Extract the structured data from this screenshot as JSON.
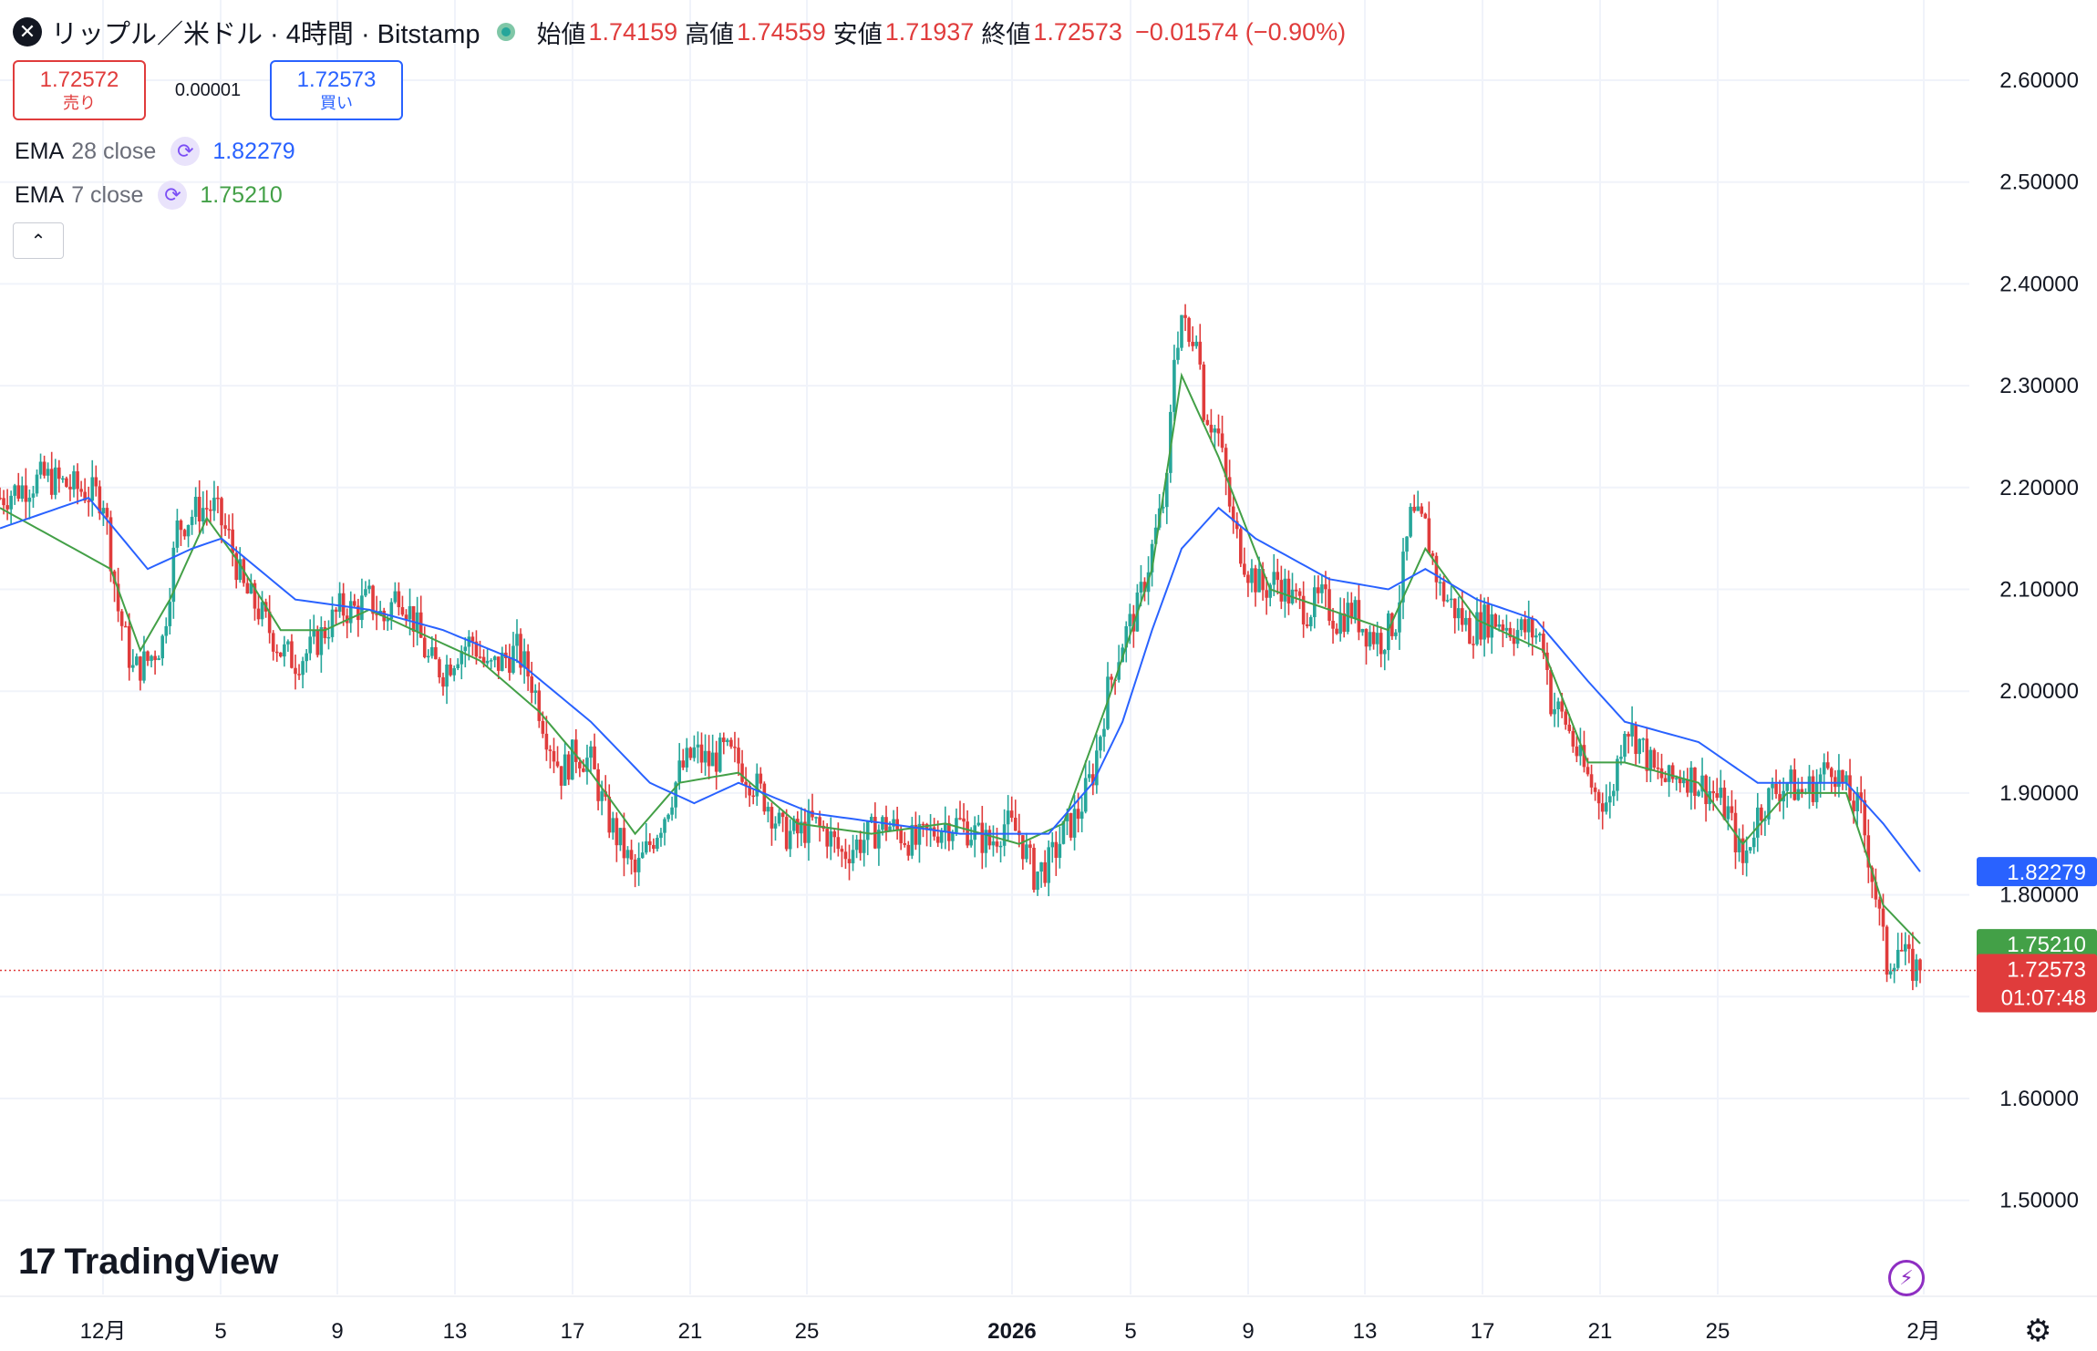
{
  "header": {
    "title": "リップル／米ドル · 4時間 · Bitstamp",
    "ohlc": [
      {
        "label": "始値",
        "value": "1.74159"
      },
      {
        "label": "高値",
        "value": "1.74559"
      },
      {
        "label": "安値",
        "value": "1.71937"
      },
      {
        "label": "終値",
        "value": "1.72573"
      }
    ],
    "change": "−0.01574 (−0.90%)"
  },
  "trade": {
    "sell_price": "1.72572",
    "sell_label": "売り",
    "spread": "0.00001",
    "buy_price": "1.72573",
    "buy_label": "買い"
  },
  "indicators": [
    {
      "name": "EMA",
      "params": "28 close",
      "value": "1.82279",
      "color": "#2962ff"
    },
    {
      "name": "EMA",
      "params": "7 close",
      "value": "1.75210",
      "color": "#43a047"
    }
  ],
  "branding": {
    "logo_text": "TradingView"
  },
  "colors": {
    "up": "#26a69a",
    "down": "#e03c3c",
    "grid": "#f0f3fa",
    "ema28": "#2962ff",
    "ema7": "#43a047"
  },
  "chart_data": {
    "type": "candlestick",
    "ylim": [
      1.43,
      2.65
    ],
    "y_ticks": [
      "2.60000",
      "2.50000",
      "2.40000",
      "2.30000",
      "2.20000",
      "2.10000",
      "2.00000",
      "1.90000",
      "1.80000",
      "1.60000",
      "1.50000"
    ],
    "x_ticks": [
      "12月",
      "5",
      "9",
      "13",
      "17",
      "21",
      "25",
      "2026",
      "5",
      "9",
      "13",
      "17",
      "21",
      "25",
      "2月"
    ],
    "price_labels": [
      {
        "text": "1.82279",
        "value": 1.82279,
        "color": "#2962ff"
      },
      {
        "text": "1.75210",
        "value": 1.7521,
        "color": "#43a047"
      },
      {
        "text": "1.72573",
        "value": 1.72573,
        "color": "#e03c3c",
        "countdown": "01:07:48"
      }
    ],
    "last_price": 1.72573,
    "price_path": [
      [
        0,
        2.19
      ],
      [
        6,
        2.2
      ],
      [
        12,
        2.21
      ],
      [
        20,
        2.2
      ],
      [
        28,
        2.19
      ],
      [
        32,
        2.08
      ],
      [
        36,
        2.02
      ],
      [
        40,
        2.03
      ],
      [
        44,
        2.05
      ],
      [
        48,
        2.16
      ],
      [
        54,
        2.18
      ],
      [
        58,
        2.18
      ],
      [
        62,
        2.15
      ],
      [
        66,
        2.1
      ],
      [
        70,
        2.08
      ],
      [
        76,
        2.04
      ],
      [
        80,
        2.03
      ],
      [
        84,
        2.04
      ],
      [
        88,
        2.06
      ],
      [
        92,
        2.08
      ],
      [
        96,
        2.08
      ],
      [
        100,
        2.09
      ],
      [
        104,
        2.07
      ],
      [
        108,
        2.1
      ],
      [
        112,
        2.07
      ],
      [
        116,
        2.03
      ],
      [
        120,
        2.02
      ],
      [
        124,
        2.04
      ],
      [
        128,
        2.05
      ],
      [
        132,
        2.02
      ],
      [
        136,
        2.03
      ],
      [
        140,
        2.04
      ],
      [
        144,
        2.01
      ],
      [
        148,
        1.96
      ],
      [
        152,
        1.92
      ],
      [
        156,
        1.94
      ],
      [
        160,
        1.93
      ],
      [
        164,
        1.88
      ],
      [
        168,
        1.85
      ],
      [
        172,
        1.82
      ],
      [
        176,
        1.85
      ],
      [
        180,
        1.88
      ],
      [
        184,
        1.92
      ],
      [
        188,
        1.94
      ],
      [
        192,
        1.93
      ],
      [
        196,
        1.94
      ],
      [
        200,
        1.93
      ],
      [
        204,
        1.91
      ],
      [
        208,
        1.89
      ],
      [
        212,
        1.86
      ],
      [
        216,
        1.86
      ],
      [
        220,
        1.87
      ],
      [
        224,
        1.86
      ],
      [
        228,
        1.84
      ],
      [
        232,
        1.85
      ],
      [
        236,
        1.86
      ],
      [
        240,
        1.87
      ],
      [
        244,
        1.86
      ],
      [
        248,
        1.85
      ],
      [
        252,
        1.86
      ],
      [
        256,
        1.87
      ],
      [
        260,
        1.87
      ],
      [
        264,
        1.86
      ],
      [
        268,
        1.85
      ],
      [
        272,
        1.87
      ],
      [
        276,
        1.86
      ],
      [
        280,
        1.82
      ],
      [
        284,
        1.83
      ],
      [
        288,
        1.86
      ],
      [
        292,
        1.88
      ],
      [
        296,
        1.92
      ],
      [
        300,
        2.0
      ],
      [
        304,
        2.05
      ],
      [
        308,
        2.08
      ],
      [
        312,
        2.14
      ],
      [
        316,
        2.2
      ],
      [
        318,
        2.33
      ],
      [
        320,
        2.37
      ],
      [
        322,
        2.34
      ],
      [
        324,
        2.36
      ],
      [
        326,
        2.28
      ],
      [
        330,
        2.25
      ],
      [
        334,
        2.16
      ],
      [
        338,
        2.12
      ],
      [
        342,
        2.1
      ],
      [
        346,
        2.11
      ],
      [
        350,
        2.09
      ],
      [
        354,
        2.08
      ],
      [
        358,
        2.09
      ],
      [
        362,
        2.07
      ],
      [
        366,
        2.08
      ],
      [
        370,
        2.06
      ],
      [
        374,
        2.05
      ],
      [
        378,
        2.07
      ],
      [
        382,
        2.17
      ],
      [
        386,
        2.16
      ],
      [
        390,
        2.1
      ],
      [
        394,
        2.08
      ],
      [
        398,
        2.06
      ],
      [
        402,
        2.07
      ],
      [
        406,
        2.07
      ],
      [
        410,
        2.06
      ],
      [
        414,
        2.06
      ],
      [
        418,
        2.05
      ],
      [
        420,
        1.99
      ],
      [
        424,
        1.97
      ],
      [
        428,
        1.93
      ],
      [
        432,
        1.9
      ],
      [
        436,
        1.89
      ],
      [
        440,
        1.97
      ],
      [
        444,
        1.95
      ],
      [
        448,
        1.92
      ],
      [
        452,
        1.91
      ],
      [
        456,
        1.92
      ],
      [
        460,
        1.91
      ],
      [
        464,
        1.9
      ],
      [
        468,
        1.88
      ],
      [
        472,
        1.83
      ],
      [
        476,
        1.88
      ],
      [
        480,
        1.9
      ],
      [
        484,
        1.91
      ],
      [
        488,
        1.9
      ],
      [
        492,
        1.91
      ],
      [
        496,
        1.93
      ],
      [
        500,
        1.9
      ],
      [
        504,
        1.88
      ],
      [
        508,
        1.8
      ],
      [
        511,
        1.73
      ],
      [
        514,
        1.75
      ],
      [
        517,
        1.73
      ],
      [
        520,
        1.726
      ]
    ],
    "ema28_path": [
      [
        0,
        2.16
      ],
      [
        24,
        2.19
      ],
      [
        40,
        2.12
      ],
      [
        52,
        2.14
      ],
      [
        60,
        2.15
      ],
      [
        80,
        2.09
      ],
      [
        100,
        2.08
      ],
      [
        120,
        2.06
      ],
      [
        140,
        2.03
      ],
      [
        160,
        1.97
      ],
      [
        176,
        1.91
      ],
      [
        188,
        1.89
      ],
      [
        200,
        1.91
      ],
      [
        220,
        1.88
      ],
      [
        240,
        1.87
      ],
      [
        260,
        1.86
      ],
      [
        276,
        1.86
      ],
      [
        284,
        1.86
      ],
      [
        296,
        1.91
      ],
      [
        304,
        1.97
      ],
      [
        312,
        2.06
      ],
      [
        320,
        2.14
      ],
      [
        330,
        2.18
      ],
      [
        340,
        2.15
      ],
      [
        360,
        2.11
      ],
      [
        376,
        2.1
      ],
      [
        386,
        2.12
      ],
      [
        400,
        2.09
      ],
      [
        416,
        2.07
      ],
      [
        430,
        2.01
      ],
      [
        440,
        1.97
      ],
      [
        460,
        1.95
      ],
      [
        476,
        1.91
      ],
      [
        500,
        1.91
      ],
      [
        510,
        1.87
      ],
      [
        520,
        1.82279
      ]
    ],
    "ema7_path": [
      [
        0,
        2.18
      ],
      [
        30,
        2.12
      ],
      [
        38,
        2.04
      ],
      [
        46,
        2.09
      ],
      [
        56,
        2.17
      ],
      [
        64,
        2.13
      ],
      [
        76,
        2.06
      ],
      [
        88,
        2.06
      ],
      [
        100,
        2.08
      ],
      [
        112,
        2.06
      ],
      [
        130,
        2.03
      ],
      [
        146,
        1.98
      ],
      [
        160,
        1.92
      ],
      [
        172,
        1.86
      ],
      [
        184,
        1.91
      ],
      [
        200,
        1.92
      ],
      [
        216,
        1.87
      ],
      [
        236,
        1.86
      ],
      [
        256,
        1.87
      ],
      [
        276,
        1.85
      ],
      [
        288,
        1.87
      ],
      [
        300,
        1.99
      ],
      [
        312,
        2.12
      ],
      [
        320,
        2.31
      ],
      [
        330,
        2.23
      ],
      [
        344,
        2.1
      ],
      [
        360,
        2.08
      ],
      [
        376,
        2.06
      ],
      [
        386,
        2.14
      ],
      [
        400,
        2.07
      ],
      [
        418,
        2.04
      ],
      [
        430,
        1.93
      ],
      [
        440,
        1.93
      ],
      [
        460,
        1.91
      ],
      [
        472,
        1.85
      ],
      [
        484,
        1.9
      ],
      [
        500,
        1.9
      ],
      [
        510,
        1.79
      ],
      [
        520,
        1.7521
      ]
    ]
  }
}
